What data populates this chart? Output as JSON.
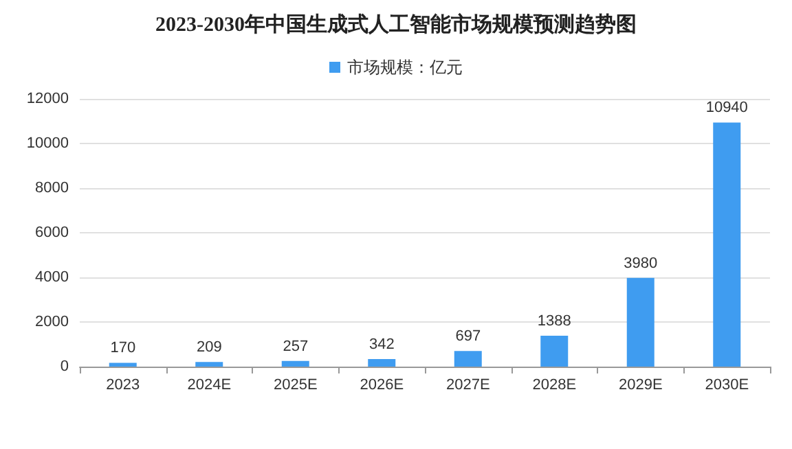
{
  "chart_data": {
    "type": "bar",
    "title": "2023-2030年中国生成式人工智能市场规模预测趋势图",
    "categories": [
      "2023",
      "2024E",
      "2025E",
      "2026E",
      "2027E",
      "2028E",
      "2029E",
      "2030E"
    ],
    "series": [
      {
        "name": "市场规模：亿元",
        "color": "#3f9cf0",
        "values": [
          170,
          209,
          257,
          342,
          697,
          1388,
          3980,
          10940
        ]
      }
    ],
    "ylim": [
      0,
      12000
    ],
    "yticks": [
      0,
      2000,
      4000,
      6000,
      8000,
      10000,
      12000
    ],
    "grid": "y",
    "legend": "top",
    "data_labels": true
  }
}
